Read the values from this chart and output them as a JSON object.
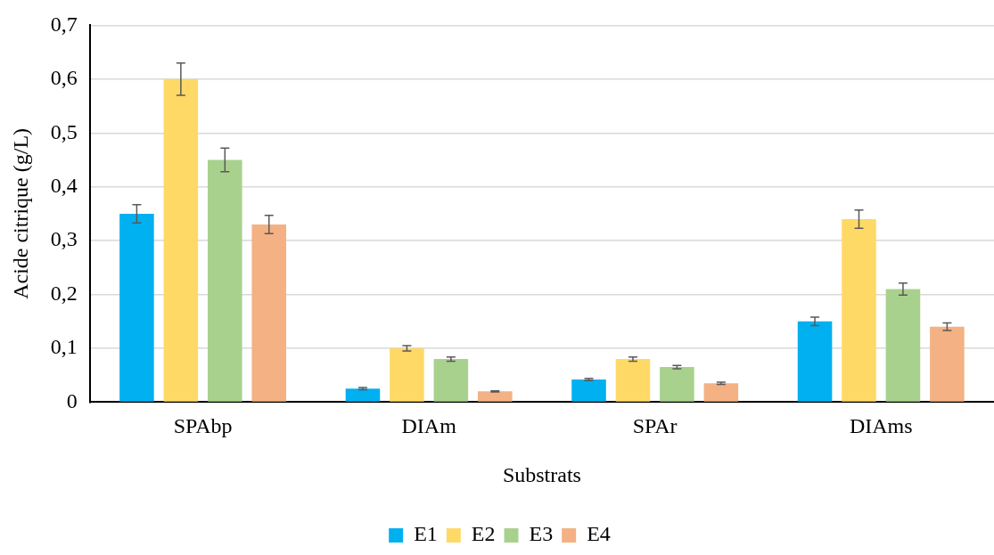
{
  "chart_data": {
    "type": "bar",
    "xlabel": "Substrats",
    "ylabel": "Acide citrique (g/L)",
    "categories": [
      "SPAbp",
      "DIAm",
      "SPAr",
      "DIAms"
    ],
    "series": [
      {
        "name": "E1",
        "color": "#00b0f0",
        "values": [
          0.35,
          0.025,
          0.042,
          0.15
        ],
        "errors": [
          0.017,
          0.002,
          0.002,
          0.008
        ]
      },
      {
        "name": "E2",
        "color": "#ffd966",
        "values": [
          0.6,
          0.1,
          0.08,
          0.34
        ],
        "errors": [
          0.03,
          0.005,
          0.004,
          0.017
        ]
      },
      {
        "name": "E3",
        "color": "#a9d18e",
        "values": [
          0.45,
          0.08,
          0.065,
          0.21
        ],
        "errors": [
          0.022,
          0.004,
          0.003,
          0.011
        ]
      },
      {
        "name": "E4",
        "color": "#f4b183",
        "values": [
          0.33,
          0.02,
          0.035,
          0.14
        ],
        "errors": [
          0.017,
          0.001,
          0.002,
          0.007
        ]
      }
    ],
    "ylim": [
      0,
      0.7
    ],
    "yticks": [
      0,
      {
        "value": 0.1,
        "label": "0,1"
      },
      {
        "value": 0.2,
        "label": "0,2"
      },
      {
        "value": 0.3,
        "label": "0,3"
      },
      {
        "value": 0.4,
        "label": "0,4"
      },
      {
        "value": 0.5,
        "label": "0,5"
      },
      {
        "value": 0.6,
        "label": "0,6"
      },
      {
        "value": 0.7,
        "label": "0,7"
      }
    ],
    "grid": "y",
    "legend": "bottom"
  }
}
